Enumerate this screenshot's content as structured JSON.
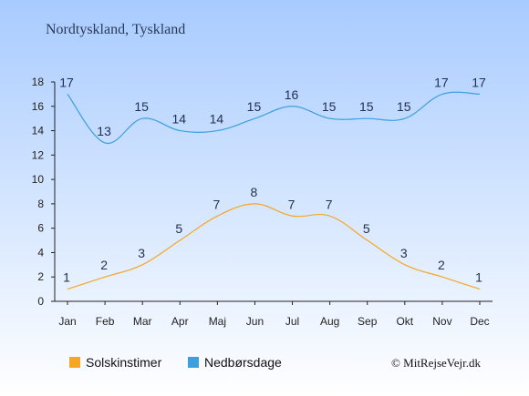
{
  "chart_data": {
    "type": "line",
    "title": "Nordtyskland, Tyskland",
    "categories": [
      "Jan",
      "Feb",
      "Mar",
      "Apr",
      "Maj",
      "Jun",
      "Jul",
      "Aug",
      "Sep",
      "Okt",
      "Nov",
      "Dec"
    ],
    "yticks": [
      0,
      2,
      4,
      6,
      8,
      10,
      12,
      14,
      16,
      18
    ],
    "ylim": [
      0,
      18
    ],
    "series": [
      {
        "name": "Solskinstimer",
        "color": "#f5a623",
        "values": [
          1,
          2,
          3,
          5,
          7,
          8,
          7,
          7,
          5,
          3,
          2,
          1
        ]
      },
      {
        "name": "Nedbørsdage",
        "color": "#3d9ee0",
        "values": [
          17,
          13,
          15,
          14,
          14,
          15,
          16,
          15,
          15,
          15,
          17,
          17
        ]
      }
    ],
    "legend": "bottom-left",
    "grid": false
  },
  "credit": "© MitRejseVejr.dk",
  "colors": {
    "background_top": "#a8cbff",
    "background_bottom": "#ffffff"
  }
}
